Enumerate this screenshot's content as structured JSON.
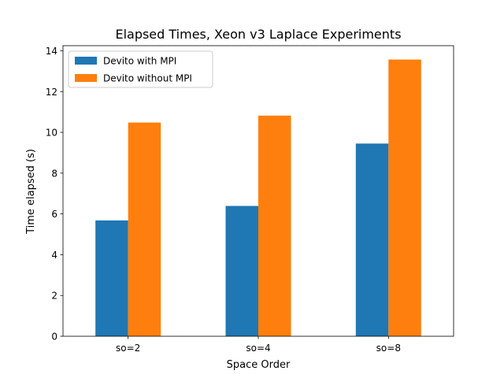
{
  "chart_data": {
    "type": "bar",
    "title": "Elapsed Times, Xeon v3 Laplace Experiments",
    "xlabel": "Space Order",
    "ylabel": "Time elapsed (s)",
    "categories": [
      "so=2",
      "so=4",
      "so=8"
    ],
    "series": [
      {
        "name": "Devito with MPI",
        "color": "#1f77b4",
        "values": [
          5.68,
          6.39,
          9.45
        ]
      },
      {
        "name": "Devito without MPI",
        "color": "#ff7f0e",
        "values": [
          10.48,
          10.82,
          13.57
        ]
      }
    ],
    "ylim": [
      0,
      14.25
    ],
    "yticks": [
      0,
      2,
      4,
      6,
      8,
      10,
      12,
      14
    ],
    "grid": false,
    "legend_position": "top-left"
  }
}
